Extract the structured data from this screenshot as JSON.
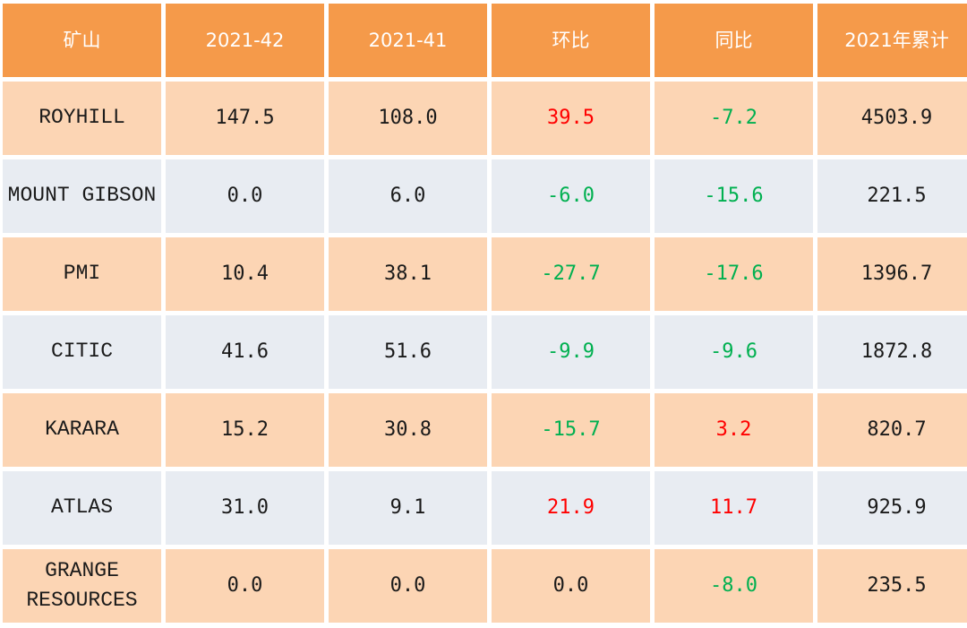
{
  "header": {
    "mine": "矿山",
    "week42": "2021-42",
    "week41": "2021-41",
    "wow": "环比",
    "yoy": "同比",
    "ytd": "2021年累计"
  },
  "rows": [
    {
      "name": "ROYHILL",
      "w42": "147.5",
      "w41": "108.0",
      "wow": "39.5",
      "yoy": "-7.2",
      "ytd": "4503.9"
    },
    {
      "name": "MOUNT GIBSON",
      "w42": "0.0",
      "w41": "6.0",
      "wow": "-6.0",
      "yoy": "-15.6",
      "ytd": "221.5"
    },
    {
      "name": "PMI",
      "w42": "10.4",
      "w41": "38.1",
      "wow": "-27.7",
      "yoy": "-17.6",
      "ytd": "1396.7"
    },
    {
      "name": "CITIC",
      "w42": "41.6",
      "w41": "51.6",
      "wow": "-9.9",
      "yoy": "-9.6",
      "ytd": "1872.8"
    },
    {
      "name": "KARARA",
      "w42": "15.2",
      "w41": "30.8",
      "wow": "-15.7",
      "yoy": "3.2",
      "ytd": "820.7"
    },
    {
      "name": "ATLAS",
      "w42": "31.0",
      "w41": "9.1",
      "wow": "21.9",
      "yoy": "11.7",
      "ytd": "925.9"
    },
    {
      "name_line1": "GRANGE",
      "name_line2": "RESOURCES",
      "w42": "0.0",
      "w41": "0.0",
      "wow": "0.0",
      "yoy": "-8.0",
      "ytd": "235.5"
    }
  ],
  "colors": {
    "header_bg": "#F59A4A",
    "row_orange": "#FCD5B4",
    "row_gray": "#E8ECF2",
    "positive": "#FF0000",
    "negative": "#00B050"
  }
}
